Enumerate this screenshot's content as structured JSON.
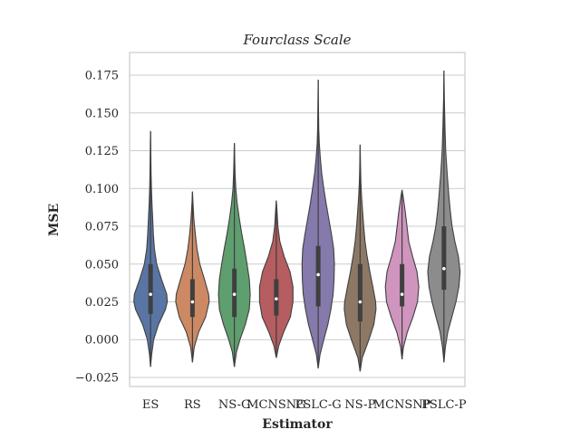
{
  "chart_data": {
    "type": "violin",
    "title": "Fourclass Scale",
    "xlabel": "Estimator",
    "ylabel": "MSE",
    "ylim": [
      -0.031,
      0.19
    ],
    "yticks": [
      -0.025,
      0.0,
      0.025,
      0.05,
      0.075,
      0.1,
      0.125,
      0.15,
      0.175
    ],
    "ytick_labels": [
      "−0.025",
      "0.000",
      "0.025",
      "0.050",
      "0.075",
      "0.100",
      "0.125",
      "0.150",
      "0.175"
    ],
    "grid": true,
    "categories": [
      "ES",
      "RS",
      "NS-G",
      "MCNSNG",
      "PSLC-G",
      "NS-P",
      "MCNSNP",
      "PSLC-P"
    ],
    "series": [
      {
        "label": "ES",
        "color": "#5975a4",
        "min": -0.018,
        "max": 0.138,
        "q1": 0.017,
        "median": 0.03,
        "q3": 0.05,
        "density": [
          [
            -0.018,
            0.0
          ],
          [
            -0.01,
            0.06
          ],
          [
            0.0,
            0.18
          ],
          [
            0.01,
            0.45
          ],
          [
            0.02,
            0.85
          ],
          [
            0.025,
            0.95
          ],
          [
            0.03,
            0.92
          ],
          [
            0.04,
            0.62
          ],
          [
            0.05,
            0.35
          ],
          [
            0.06,
            0.22
          ],
          [
            0.07,
            0.16
          ],
          [
            0.08,
            0.12
          ],
          [
            0.09,
            0.08
          ],
          [
            0.1,
            0.05
          ],
          [
            0.11,
            0.03
          ],
          [
            0.12,
            0.02
          ],
          [
            0.138,
            0.0
          ]
        ]
      },
      {
        "label": "RS",
        "color": "#cc8963",
        "min": -0.015,
        "max": 0.098,
        "q1": 0.015,
        "median": 0.025,
        "q3": 0.04,
        "density": [
          [
            -0.015,
            0.0
          ],
          [
            -0.005,
            0.1
          ],
          [
            0.005,
            0.35
          ],
          [
            0.015,
            0.75
          ],
          [
            0.025,
            0.95
          ],
          [
            0.03,
            0.92
          ],
          [
            0.04,
            0.68
          ],
          [
            0.05,
            0.42
          ],
          [
            0.06,
            0.26
          ],
          [
            0.07,
            0.16
          ],
          [
            0.08,
            0.08
          ],
          [
            0.09,
            0.03
          ],
          [
            0.098,
            0.0
          ]
        ]
      },
      {
        "label": "NS-G",
        "color": "#5f9e6e",
        "min": -0.018,
        "max": 0.13,
        "q1": 0.015,
        "median": 0.03,
        "q3": 0.047,
        "density": [
          [
            -0.018,
            0.0
          ],
          [
            -0.008,
            0.12
          ],
          [
            0.0,
            0.32
          ],
          [
            0.01,
            0.62
          ],
          [
            0.02,
            0.85
          ],
          [
            0.03,
            0.9
          ],
          [
            0.04,
            0.85
          ],
          [
            0.05,
            0.72
          ],
          [
            0.06,
            0.58
          ],
          [
            0.07,
            0.42
          ],
          [
            0.08,
            0.28
          ],
          [
            0.09,
            0.16
          ],
          [
            0.1,
            0.08
          ],
          [
            0.11,
            0.04
          ],
          [
            0.12,
            0.02
          ],
          [
            0.13,
            0.0
          ]
        ]
      },
      {
        "label": "MCNSNG",
        "color": "#b55d60",
        "min": -0.012,
        "max": 0.092,
        "q1": 0.016,
        "median": 0.027,
        "q3": 0.04,
        "density": [
          [
            -0.012,
            0.0
          ],
          [
            -0.004,
            0.14
          ],
          [
            0.005,
            0.42
          ],
          [
            0.015,
            0.8
          ],
          [
            0.025,
            0.95
          ],
          [
            0.035,
            0.95
          ],
          [
            0.045,
            0.78
          ],
          [
            0.055,
            0.45
          ],
          [
            0.065,
            0.2
          ],
          [
            0.075,
            0.09
          ],
          [
            0.085,
            0.04
          ],
          [
            0.092,
            0.0
          ]
        ]
      },
      {
        "label": "PSLC-G",
        "color": "#857aab",
        "min": -0.019,
        "max": 0.172,
        "q1": 0.022,
        "median": 0.043,
        "q3": 0.062,
        "density": [
          [
            -0.019,
            0.0
          ],
          [
            -0.01,
            0.1
          ],
          [
            0.0,
            0.32
          ],
          [
            0.01,
            0.55
          ],
          [
            0.02,
            0.72
          ],
          [
            0.03,
            0.85
          ],
          [
            0.04,
            0.9
          ],
          [
            0.05,
            0.92
          ],
          [
            0.06,
            0.88
          ],
          [
            0.07,
            0.75
          ],
          [
            0.08,
            0.6
          ],
          [
            0.09,
            0.45
          ],
          [
            0.1,
            0.32
          ],
          [
            0.11,
            0.2
          ],
          [
            0.12,
            0.12
          ],
          [
            0.13,
            0.06
          ],
          [
            0.14,
            0.03
          ],
          [
            0.16,
            0.01
          ],
          [
            0.172,
            0.0
          ]
        ]
      },
      {
        "label": "NS-P",
        "color": "#8d7866",
        "min": -0.021,
        "max": 0.129,
        "q1": 0.012,
        "median": 0.025,
        "q3": 0.05,
        "density": [
          [
            -0.021,
            0.0
          ],
          [
            -0.012,
            0.12
          ],
          [
            0.0,
            0.5
          ],
          [
            0.01,
            0.78
          ],
          [
            0.02,
            0.9
          ],
          [
            0.025,
            0.88
          ],
          [
            0.035,
            0.72
          ],
          [
            0.045,
            0.55
          ],
          [
            0.055,
            0.4
          ],
          [
            0.065,
            0.28
          ],
          [
            0.075,
            0.2
          ],
          [
            0.085,
            0.14
          ],
          [
            0.095,
            0.08
          ],
          [
            0.105,
            0.04
          ],
          [
            0.115,
            0.02
          ],
          [
            0.129,
            0.0
          ]
        ]
      },
      {
        "label": "MCNSNP",
        "color": "#d095bf",
        "min": -0.013,
        "max": 0.099,
        "q1": 0.022,
        "median": 0.03,
        "q3": 0.05,
        "density": [
          [
            -0.013,
            0.0
          ],
          [
            -0.005,
            0.08
          ],
          [
            0.005,
            0.3
          ],
          [
            0.015,
            0.62
          ],
          [
            0.025,
            0.88
          ],
          [
            0.035,
            0.95
          ],
          [
            0.045,
            0.85
          ],
          [
            0.055,
            0.6
          ],
          [
            0.065,
            0.38
          ],
          [
            0.075,
            0.28
          ],
          [
            0.085,
            0.18
          ],
          [
            0.095,
            0.06
          ],
          [
            0.099,
            0.0
          ]
        ]
      },
      {
        "label": "PSLC-P",
        "color": "#8c8c8c",
        "min": -0.015,
        "max": 0.178,
        "q1": 0.033,
        "median": 0.047,
        "q3": 0.075,
        "density": [
          [
            -0.015,
            0.0
          ],
          [
            -0.005,
            0.08
          ],
          [
            0.005,
            0.22
          ],
          [
            0.015,
            0.45
          ],
          [
            0.025,
            0.68
          ],
          [
            0.035,
            0.85
          ],
          [
            0.045,
            0.92
          ],
          [
            0.055,
            0.82
          ],
          [
            0.065,
            0.62
          ],
          [
            0.075,
            0.46
          ],
          [
            0.085,
            0.36
          ],
          [
            0.095,
            0.28
          ],
          [
            0.11,
            0.18
          ],
          [
            0.125,
            0.1
          ],
          [
            0.14,
            0.06
          ],
          [
            0.16,
            0.02
          ],
          [
            0.178,
            0.0
          ]
        ]
      }
    ]
  }
}
